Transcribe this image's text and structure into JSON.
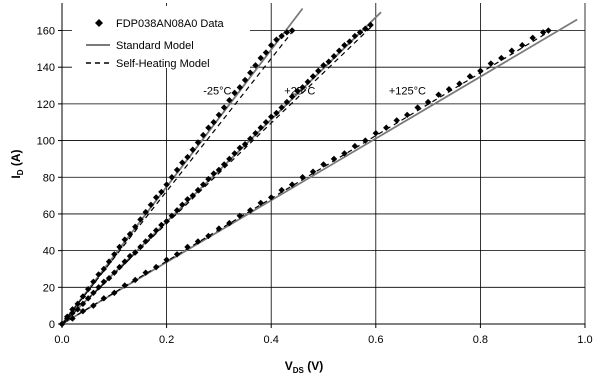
{
  "chart_data": {
    "type": "scatter",
    "title": "",
    "xlabel": {
      "main": "V",
      "sub": "DS",
      "unit": " (V)"
    },
    "ylabel": {
      "main": "I",
      "sub": "D",
      "unit": " (A)"
    },
    "xlim": [
      0,
      1.0
    ],
    "ylim": [
      0,
      175
    ],
    "xticks": [
      0.0,
      0.2,
      0.4,
      0.6,
      0.8,
      1.0
    ],
    "xtick_labels": [
      "0.0",
      "0.2",
      "0.4",
      "0.6",
      "0.8",
      "1.0"
    ],
    "yticks": [
      0,
      20,
      40,
      60,
      80,
      100,
      120,
      140,
      160
    ],
    "ytick_labels": [
      "0",
      "20",
      "40",
      "60",
      "80",
      "100",
      "120",
      "140",
      "160"
    ],
    "grid": true,
    "legend_position": "top-left",
    "legend": [
      {
        "label": "FDP038AN08A0 Data",
        "marker": "diamond"
      },
      {
        "label": "Standard Model",
        "style": "solid"
      },
      {
        "label": "Self-Heating Model",
        "style": "dashed"
      }
    ],
    "annotations": [
      {
        "text": "-25°C",
        "x": 0.27,
        "y": 125
      },
      {
        "text": "+25°C",
        "x": 0.425,
        "y": 125
      },
      {
        "text": "+125°C",
        "x": 0.625,
        "y": 125
      }
    ],
    "series": [
      {
        "name": "FDP038AN08A0 Data",
        "kind": "points",
        "points": [
          [
            0.0,
            0
          ],
          [
            0.01,
            4
          ],
          [
            0.02,
            8
          ],
          [
            0.03,
            11
          ],
          [
            0.04,
            15
          ],
          [
            0.05,
            19
          ],
          [
            0.06,
            23
          ],
          [
            0.07,
            27
          ],
          [
            0.08,
            30
          ],
          [
            0.09,
            34
          ],
          [
            0.1,
            38
          ],
          [
            0.11,
            42
          ],
          [
            0.12,
            46
          ],
          [
            0.13,
            49
          ],
          [
            0.14,
            53
          ],
          [
            0.15,
            57
          ],
          [
            0.16,
            61
          ],
          [
            0.17,
            65
          ],
          [
            0.18,
            69
          ],
          [
            0.19,
            72
          ],
          [
            0.2,
            76
          ],
          [
            0.21,
            80
          ],
          [
            0.22,
            84
          ],
          [
            0.23,
            88
          ],
          [
            0.24,
            91
          ],
          [
            0.25,
            95
          ],
          [
            0.26,
            99
          ],
          [
            0.27,
            103
          ],
          [
            0.28,
            107
          ],
          [
            0.29,
            110
          ],
          [
            0.3,
            114
          ],
          [
            0.31,
            118
          ],
          [
            0.32,
            122
          ],
          [
            0.33,
            126
          ],
          [
            0.34,
            129
          ],
          [
            0.35,
            133
          ],
          [
            0.36,
            137
          ],
          [
            0.37,
            141
          ],
          [
            0.38,
            145
          ],
          [
            0.39,
            148
          ],
          [
            0.4,
            152
          ],
          [
            0.41,
            155
          ],
          [
            0.42,
            157
          ],
          [
            0.43,
            159
          ],
          [
            0.44,
            160
          ],
          [
            0.0,
            0
          ],
          [
            0.01,
            3
          ],
          [
            0.02,
            6
          ],
          [
            0.03,
            8
          ],
          [
            0.04,
            11
          ],
          [
            0.05,
            14
          ],
          [
            0.06,
            17
          ],
          [
            0.07,
            20
          ],
          [
            0.08,
            23
          ],
          [
            0.09,
            25
          ],
          [
            0.1,
            28
          ],
          [
            0.11,
            31
          ],
          [
            0.12,
            34
          ],
          [
            0.13,
            37
          ],
          [
            0.14,
            39
          ],
          [
            0.15,
            42
          ],
          [
            0.16,
            45
          ],
          [
            0.17,
            48
          ],
          [
            0.18,
            51
          ],
          [
            0.19,
            54
          ],
          [
            0.2,
            56
          ],
          [
            0.21,
            59
          ],
          [
            0.22,
            62
          ],
          [
            0.23,
            65
          ],
          [
            0.24,
            68
          ],
          [
            0.25,
            70
          ],
          [
            0.26,
            73
          ],
          [
            0.27,
            76
          ],
          [
            0.28,
            79
          ],
          [
            0.29,
            82
          ],
          [
            0.3,
            84
          ],
          [
            0.31,
            87
          ],
          [
            0.32,
            90
          ],
          [
            0.33,
            93
          ],
          [
            0.34,
            96
          ],
          [
            0.35,
            98
          ],
          [
            0.36,
            101
          ],
          [
            0.37,
            104
          ],
          [
            0.38,
            107
          ],
          [
            0.39,
            110
          ],
          [
            0.4,
            113
          ],
          [
            0.41,
            115
          ],
          [
            0.42,
            118
          ],
          [
            0.43,
            121
          ],
          [
            0.44,
            124
          ],
          [
            0.45,
            127
          ],
          [
            0.46,
            129
          ],
          [
            0.47,
            132
          ],
          [
            0.48,
            135
          ],
          [
            0.49,
            138
          ],
          [
            0.5,
            141
          ],
          [
            0.51,
            143
          ],
          [
            0.52,
            146
          ],
          [
            0.53,
            149
          ],
          [
            0.54,
            152
          ],
          [
            0.55,
            154
          ],
          [
            0.56,
            157
          ],
          [
            0.57,
            159
          ],
          [
            0.58,
            161
          ],
          [
            0.59,
            163
          ],
          [
            0.0,
            0
          ],
          [
            0.02,
            3
          ],
          [
            0.04,
            7
          ],
          [
            0.06,
            10
          ],
          [
            0.08,
            14
          ],
          [
            0.1,
            17
          ],
          [
            0.12,
            21
          ],
          [
            0.14,
            24
          ],
          [
            0.16,
            28
          ],
          [
            0.18,
            31
          ],
          [
            0.2,
            35
          ],
          [
            0.22,
            38
          ],
          [
            0.24,
            42
          ],
          [
            0.26,
            45
          ],
          [
            0.28,
            48
          ],
          [
            0.3,
            52
          ],
          [
            0.32,
            55
          ],
          [
            0.34,
            59
          ],
          [
            0.36,
            62
          ],
          [
            0.38,
            66
          ],
          [
            0.4,
            69
          ],
          [
            0.42,
            73
          ],
          [
            0.44,
            76
          ],
          [
            0.46,
            80
          ],
          [
            0.48,
            83
          ],
          [
            0.5,
            87
          ],
          [
            0.52,
            90
          ],
          [
            0.54,
            93
          ],
          [
            0.56,
            97
          ],
          [
            0.58,
            100
          ],
          [
            0.6,
            104
          ],
          [
            0.62,
            107
          ],
          [
            0.64,
            111
          ],
          [
            0.66,
            114
          ],
          [
            0.68,
            118
          ],
          [
            0.7,
            121
          ],
          [
            0.72,
            125
          ],
          [
            0.74,
            128
          ],
          [
            0.76,
            131
          ],
          [
            0.78,
            135
          ],
          [
            0.8,
            138
          ],
          [
            0.82,
            142
          ],
          [
            0.84,
            145
          ],
          [
            0.86,
            149
          ],
          [
            0.88,
            152
          ],
          [
            0.9,
            156
          ],
          [
            0.92,
            159
          ],
          [
            0.93,
            160
          ]
        ]
      },
      {
        "name": "Standard Model",
        "kind": "lines",
        "lines": [
          [
            [
              0.0,
              0
            ],
            [
              0.46,
              172
            ]
          ],
          [
            [
              0.0,
              0
            ],
            [
              0.61,
              170
            ]
          ],
          [
            [
              0.0,
              0
            ],
            [
              0.985,
              166
            ]
          ]
        ]
      },
      {
        "name": "Self-Heating Model",
        "kind": "lines",
        "lines": [
          [
            [
              0.0,
              0
            ],
            [
              0.445,
              161
            ]
          ],
          [
            [
              0.0,
              0
            ],
            [
              0.595,
              163
            ]
          ],
          [
            [
              0.0,
              0
            ],
            [
              0.935,
              160
            ]
          ]
        ]
      }
    ]
  }
}
